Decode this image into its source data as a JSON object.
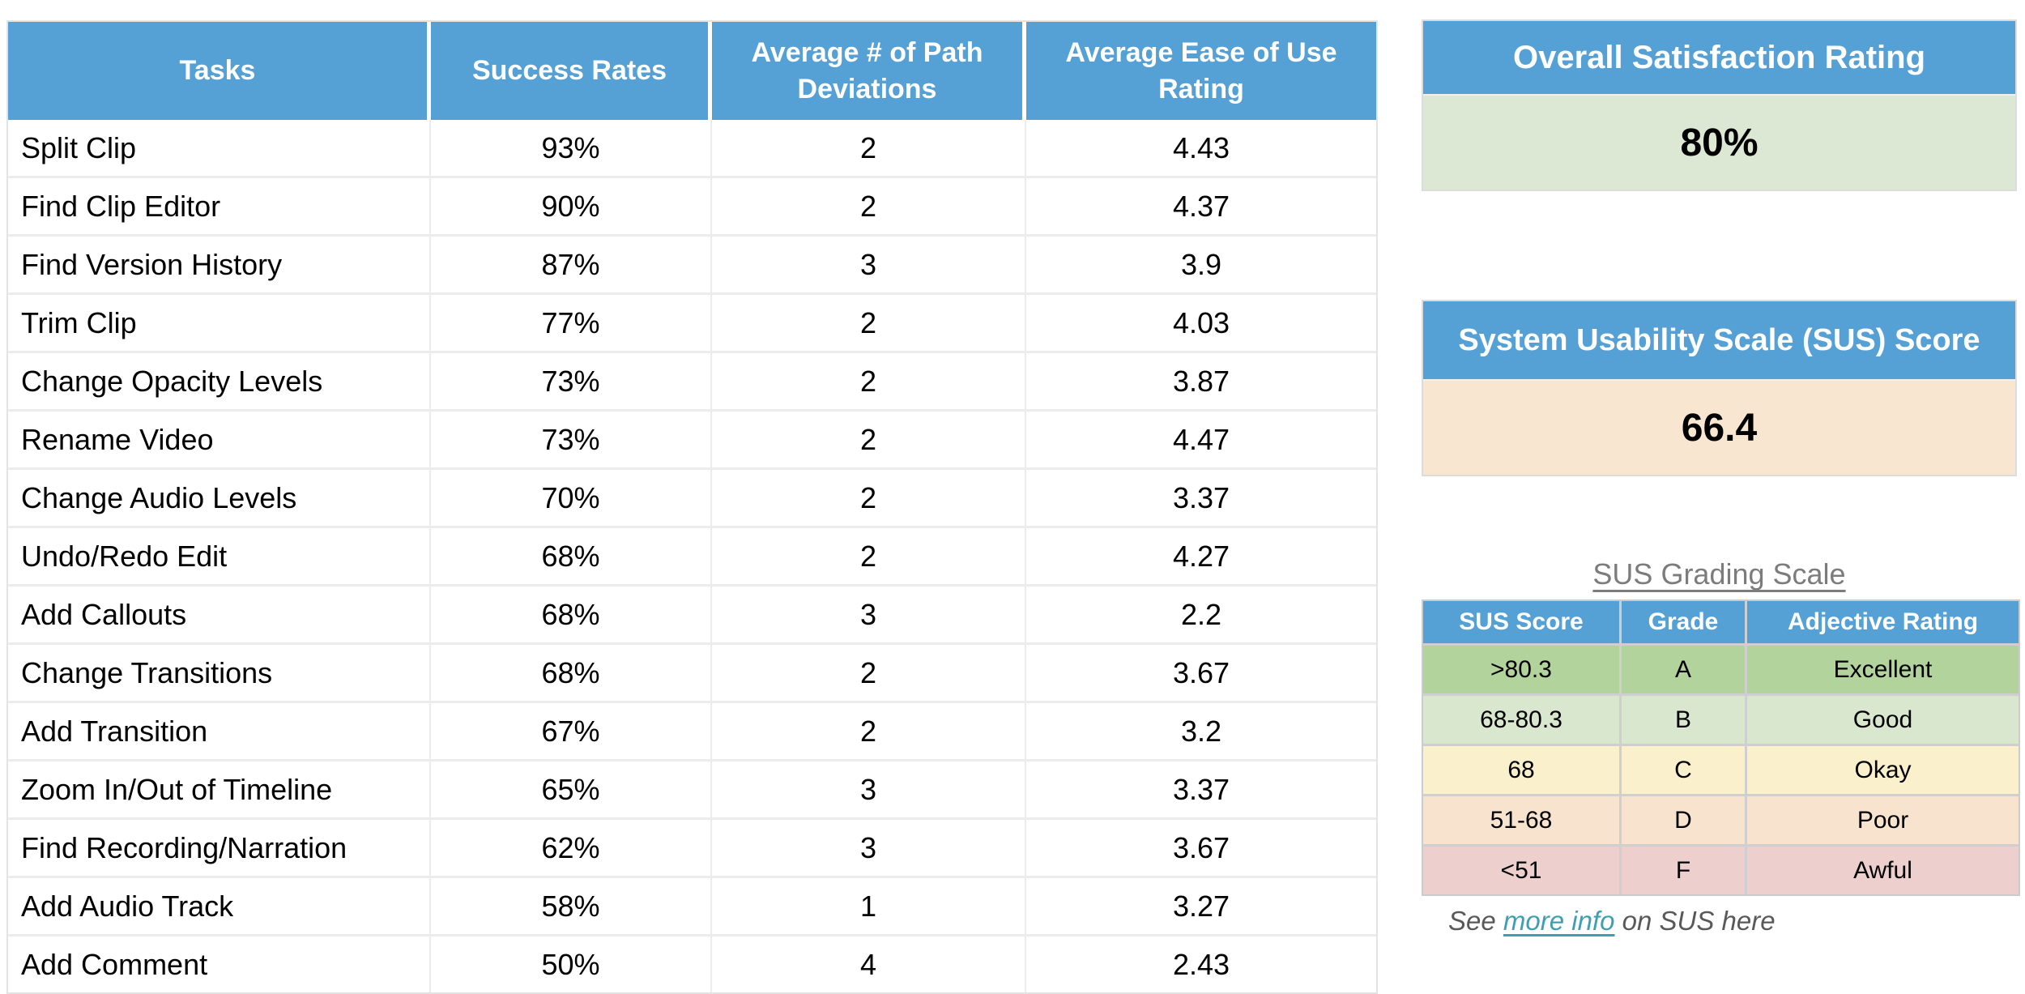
{
  "colors": {
    "header_blue": "#55A0D5",
    "satisfaction_bg": "#DCE8D3",
    "sus_bg": "#F8E6D0",
    "link_teal": "#3E9FB3"
  },
  "main_table": {
    "headers": [
      "Tasks",
      "Success Rates",
      "Average # of Path Deviations",
      "Average Ease of Use Rating"
    ],
    "rows": [
      {
        "task": "Split Clip",
        "success": "93%",
        "deviations": "2",
        "ease": "4.43"
      },
      {
        "task": "Find Clip Editor",
        "success": "90%",
        "deviations": "2",
        "ease": "4.37"
      },
      {
        "task": "Find Version History",
        "success": "87%",
        "deviations": "3",
        "ease": "3.9"
      },
      {
        "task": "Trim Clip",
        "success": "77%",
        "deviations": "2",
        "ease": "4.03"
      },
      {
        "task": "Change Opacity Levels",
        "success": "73%",
        "deviations": "2",
        "ease": "3.87"
      },
      {
        "task": "Rename Video",
        "success": "73%",
        "deviations": "2",
        "ease": "4.47"
      },
      {
        "task": "Change Audio Levels",
        "success": "70%",
        "deviations": "2",
        "ease": "3.37"
      },
      {
        "task": "Undo/Redo Edit",
        "success": "68%",
        "deviations": "2",
        "ease": "4.27"
      },
      {
        "task": "Add Callouts",
        "success": "68%",
        "deviations": "3",
        "ease": "2.2"
      },
      {
        "task": "Change Transitions",
        "success": "68%",
        "deviations": "2",
        "ease": "3.67"
      },
      {
        "task": "Add Transition",
        "success": "67%",
        "deviations": "2",
        "ease": "3.2"
      },
      {
        "task": "Zoom In/Out of Timeline",
        "success": "65%",
        "deviations": "3",
        "ease": "3.37"
      },
      {
        "task": "Find Recording/Narration",
        "success": "62%",
        "deviations": "3",
        "ease": "3.67"
      },
      {
        "task": "Add Audio Track",
        "success": "58%",
        "deviations": "1",
        "ease": "3.27"
      },
      {
        "task": "Add Comment",
        "success": "50%",
        "deviations": "4",
        "ease": "2.43"
      }
    ]
  },
  "satisfaction_panel": {
    "title": "Overall Satisfaction Rating",
    "value": "80%"
  },
  "sus_panel": {
    "title": "System Usability Scale (SUS) Score",
    "value": "66.4"
  },
  "grading": {
    "title": "SUS Grading Scale",
    "headers": [
      "SUS Score",
      "Grade",
      "Adjective Rating"
    ],
    "rows": [
      {
        "score": ">80.3",
        "grade": "A",
        "adjective": "Excellent",
        "color": "#B2D39B"
      },
      {
        "score": "68-80.3",
        "grade": "B",
        "adjective": "Good",
        "color": "#D9E7CF"
      },
      {
        "score": "68",
        "grade": "C",
        "adjective": "Okay",
        "color": "#FAF1CC"
      },
      {
        "score": "51-68",
        "grade": "D",
        "adjective": "Poor",
        "color": "#F8E4CE"
      },
      {
        "score": "<51",
        "grade": "F",
        "adjective": "Awful",
        "color": "#EDD0CD"
      }
    ]
  },
  "footnote": {
    "prefix": "See ",
    "link_label": "more info",
    "suffix": " on SUS here"
  }
}
